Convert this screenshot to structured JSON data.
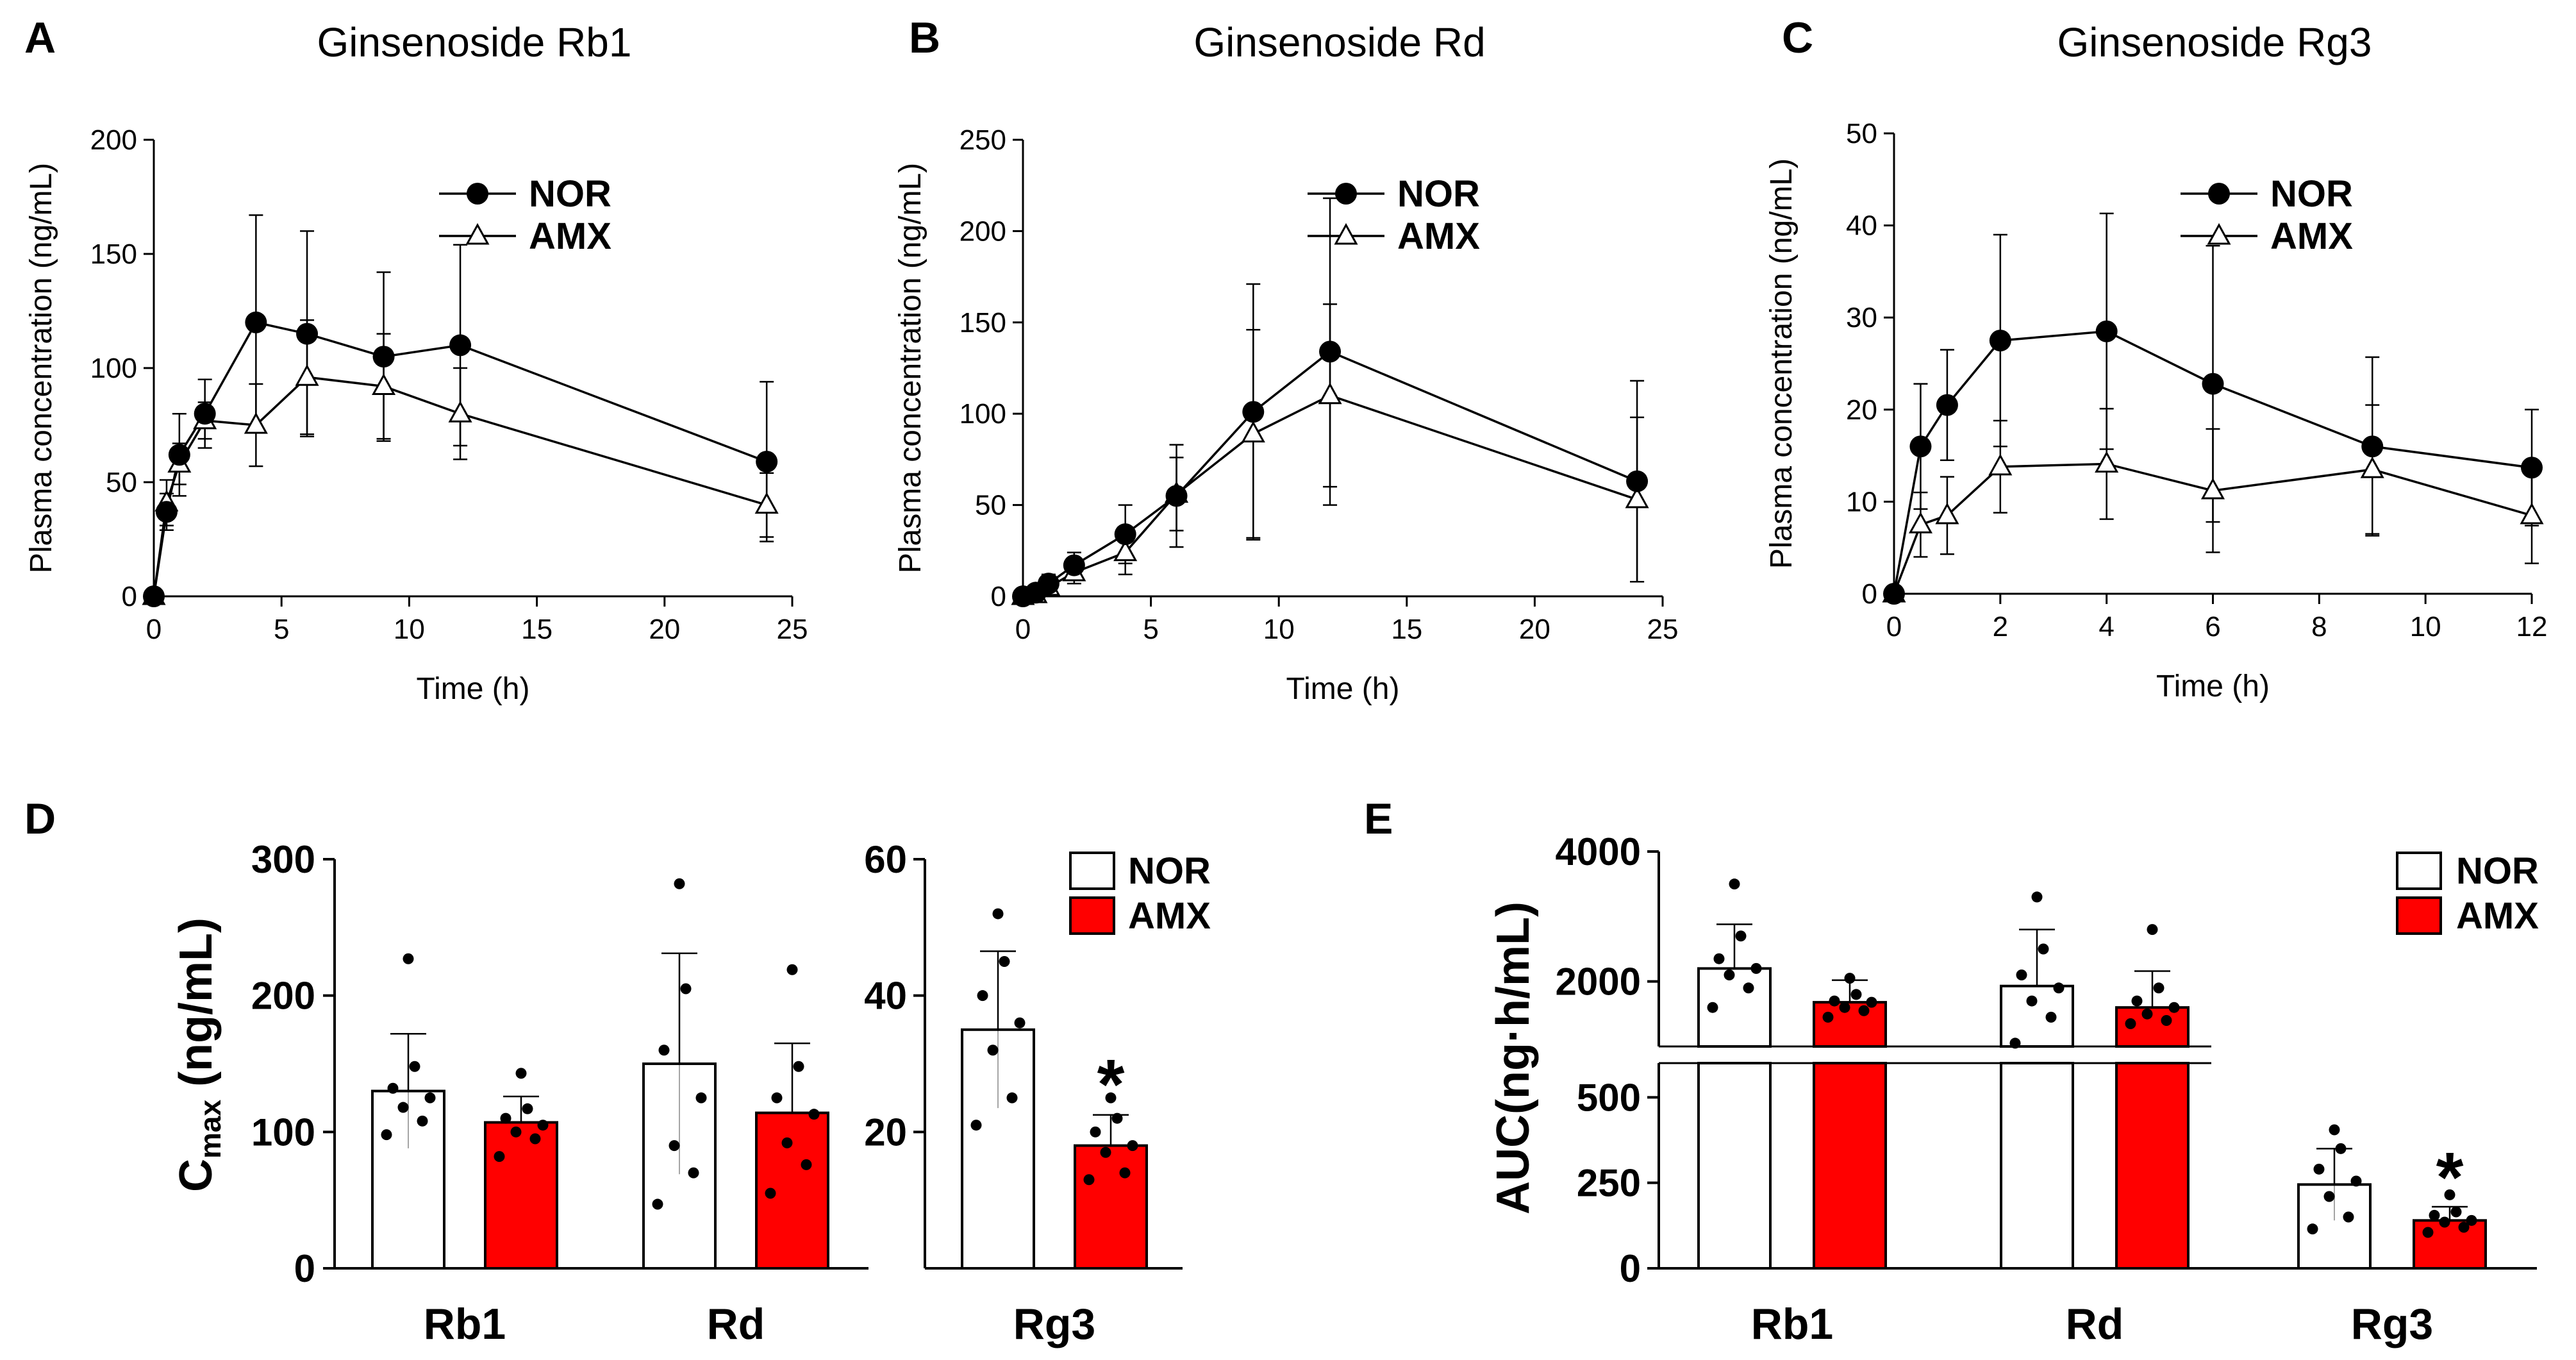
{
  "colors": {
    "nor": "#ffffff",
    "amx": "#ff0000",
    "ink": "#000000"
  },
  "legend": {
    "nor": "NOR",
    "amx": "AMX"
  },
  "chart_data": [
    {
      "id": "A",
      "panel_label": "A",
      "type": "line",
      "title": "Ginsenoside Rb1",
      "xlabel": "Time (h)",
      "ylabel": "Plasma concentration (ng/mL)",
      "xlim": [
        0,
        25
      ],
      "ylim": [
        0,
        200
      ],
      "xticks": [
        0,
        5,
        10,
        15,
        20,
        25
      ],
      "yticks": [
        0,
        50,
        100,
        150,
        200
      ],
      "x": [
        0,
        0.5,
        1,
        2,
        4,
        6,
        9,
        12,
        24
      ],
      "series": [
        {
          "name": "NOR",
          "marker": "circle",
          "values": [
            0,
            37,
            62,
            80,
            120,
            115,
            105,
            110,
            59
          ],
          "errors": [
            0,
            8,
            18,
            15,
            47,
            45,
            37,
            44,
            35
          ]
        },
        {
          "name": "AMX",
          "marker": "triangle",
          "values": [
            0,
            41,
            58,
            77,
            75,
            96,
            92,
            80,
            40
          ],
          "errors": [
            0,
            10,
            9,
            8,
            18,
            25,
            23,
            20,
            14
          ]
        }
      ]
    },
    {
      "id": "B",
      "panel_label": "B",
      "type": "line",
      "title": "Ginsenoside Rd",
      "xlabel": "Time (h)",
      "ylabel": "Plasma concentration (ng/mL)",
      "xlim": [
        0,
        25
      ],
      "ylim": [
        0,
        250
      ],
      "xticks": [
        0,
        5,
        10,
        15,
        20,
        25
      ],
      "yticks": [
        0,
        50,
        100,
        150,
        200,
        250
      ],
      "x": [
        0,
        0.5,
        1,
        2,
        4,
        6,
        9,
        12,
        24
      ],
      "series": [
        {
          "name": "NOR",
          "marker": "circle",
          "values": [
            0,
            2,
            7,
            17,
            34,
            55,
            101,
            134,
            63
          ],
          "errors": [
            0,
            2,
            5,
            7,
            16,
            28,
            70,
            84,
            55
          ]
        },
        {
          "name": "AMX",
          "marker": "triangle",
          "values": [
            0,
            1,
            5,
            13,
            24,
            56,
            89,
            110,
            53
          ],
          "errors": [
            0,
            2,
            4,
            6,
            12,
            20,
            57,
            50,
            45
          ]
        }
      ]
    },
    {
      "id": "C",
      "panel_label": "C",
      "type": "line",
      "title": "Ginsenoside Rg3",
      "xlabel": "Time (h)",
      "ylabel": "Plasma concentration (ng/mL)",
      "xlim": [
        0,
        12
      ],
      "ylim": [
        0,
        50
      ],
      "xticks": [
        0,
        2,
        4,
        6,
        8,
        10,
        12
      ],
      "yticks": [
        0,
        10,
        20,
        30,
        40,
        50
      ],
      "x": [
        0,
        0.5,
        1,
        2,
        4,
        6,
        9,
        12
      ],
      "series": [
        {
          "name": "NOR",
          "marker": "circle",
          "values": [
            0,
            16,
            20.5,
            27.5,
            28.5,
            22.8,
            16,
            13.7
          ],
          "errors": [
            0,
            6.8,
            6,
            11.5,
            12.8,
            15,
            9.7,
            6.3
          ]
        },
        {
          "name": "AMX",
          "marker": "triangle",
          "values": [
            0,
            7.5,
            8.5,
            13.8,
            14.1,
            11.2,
            13.5,
            8.5
          ],
          "errors": [
            0,
            3.5,
            4.2,
            5,
            6,
            6.7,
            7,
            5.2
          ]
        }
      ]
    },
    {
      "id": "D",
      "panel_label": "D",
      "type": "bar",
      "ylabel": "C",
      "ylabel_sub": "max",
      "ylabel_suffix": " (ng/mL)",
      "left": {
        "categories": [
          "Rb1",
          "Rd"
        ],
        "ylim": [
          0,
          300
        ],
        "yticks": [
          0,
          100,
          200,
          300
        ],
        "series": [
          {
            "name": "NOR",
            "values": [
              130,
              150
            ],
            "errors": [
              42,
              81
            ],
            "points": [
              [
                98,
                108,
                118,
                125,
                132,
                148,
                227
              ],
              [
                47,
                70,
                90,
                125,
                160,
                205,
                282
              ]
            ]
          },
          {
            "name": "AMX",
            "values": [
              107,
              114
            ],
            "errors": [
              19,
              51
            ],
            "points": [
              [
                82,
                95,
                100,
                105,
                110,
                117,
                143
              ],
              [
                55,
                76,
                92,
                113,
                125,
                148,
                219
              ]
            ]
          }
        ]
      },
      "right": {
        "categories": [
          "Rg3"
        ],
        "ylim": [
          0,
          60
        ],
        "yticks": [
          20,
          40,
          60
        ],
        "significance": "*",
        "series": [
          {
            "name": "NOR",
            "values": [
              35
            ],
            "errors": [
              11.5
            ],
            "points": [
              [
                21,
                25,
                32,
                36,
                40,
                45,
                52
              ]
            ]
          },
          {
            "name": "AMX",
            "values": [
              18
            ],
            "errors": [
              4.5
            ],
            "points": [
              [
                13,
                14,
                17,
                18,
                20,
                22,
                25
              ]
            ]
          }
        ]
      }
    },
    {
      "id": "E",
      "panel_label": "E",
      "type": "bar",
      "ylabel": "AUC(ng·h/mL)",
      "categories": [
        "Rb1",
        "Rd",
        "Rg3"
      ],
      "upper_ylim": [
        1000,
        4000
      ],
      "upper_yticks": [
        2000,
        4000
      ],
      "lower_ylim": [
        0,
        600
      ],
      "lower_yticks": [
        0,
        250,
        500
      ],
      "significance": "*",
      "series": [
        {
          "name": "NOR",
          "values": [
            2200,
            1930,
            245
          ],
          "errors": [
            680,
            870,
            105
          ],
          "points": [
            [
              1600,
              1900,
              2100,
              2200,
              2350,
              2700,
              3500
            ],
            [
              1050,
              1450,
              1700,
              1900,
              2100,
              2500,
              3300
            ],
            [
              115,
              150,
              210,
              255,
              290,
              350,
              405
            ]
          ]
        },
        {
          "name": "AMX",
          "values": [
            1680,
            1600,
            140
          ],
          "errors": [
            340,
            560,
            40
          ],
          "points": [
            [
              1450,
              1550,
              1600,
              1680,
              1700,
              1800,
              2050
            ],
            [
              1350,
              1400,
              1500,
              1600,
              1700,
              1900,
              2800
            ],
            [
              105,
              120,
              135,
              140,
              155,
              165,
              215
            ]
          ]
        }
      ]
    }
  ]
}
